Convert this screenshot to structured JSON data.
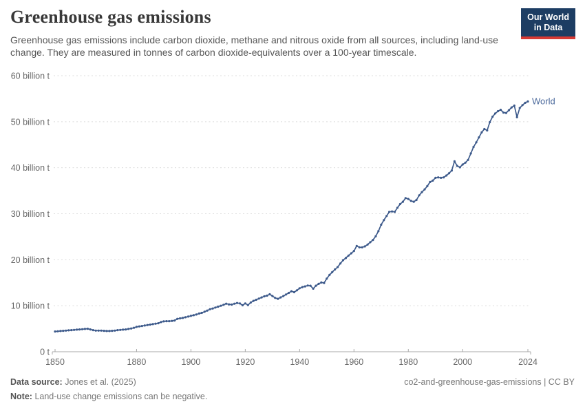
{
  "header": {
    "title": "Greenhouse gas emissions",
    "subtitle": "Greenhouse gas emissions include carbon dioxide, methane and nitrous oxide from all sources, including land-use change. They are measured in tonnes of carbon dioxide-equivalents over a 100-year timescale."
  },
  "logo": {
    "line1": "Our World",
    "line2": "in Data",
    "bg_color": "#1d3d63",
    "accent_color": "#d73a34"
  },
  "chart_data": {
    "type": "line",
    "title": "Greenhouse gas emissions",
    "ylabel": "",
    "xlabel": "",
    "unit": "tonnes of carbon dioxide-equivalents",
    "year_start": 1850,
    "year_end": 2024,
    "ylim": [
      0,
      60
    ],
    "grid": "horizontal-dashed",
    "legend_position": "end-of-line",
    "xticks": [
      1850,
      1880,
      1900,
      1920,
      1940,
      1960,
      1980,
      2000,
      2024
    ],
    "yticks": [
      {
        "value": 0,
        "label": "0 t"
      },
      {
        "value": 10,
        "label": "10 billion t"
      },
      {
        "value": 20,
        "label": "20 billion t"
      },
      {
        "value": 30,
        "label": "30 billion t"
      },
      {
        "value": 40,
        "label": "40 billion t"
      },
      {
        "value": 50,
        "label": "50 billion t"
      },
      {
        "value": 60,
        "label": "60 billion t"
      }
    ],
    "series": [
      {
        "name": "World",
        "color": "#3d5a8b",
        "label_color": "#4c6a9c",
        "values": [
          4.4,
          4.45,
          4.5,
          4.55,
          4.6,
          4.65,
          4.7,
          4.75,
          4.8,
          4.85,
          4.9,
          4.95,
          5.0,
          4.85,
          4.7,
          4.6,
          4.6,
          4.6,
          4.55,
          4.5,
          4.5,
          4.55,
          4.6,
          4.7,
          4.75,
          4.8,
          4.85,
          4.95,
          5.05,
          5.2,
          5.4,
          5.5,
          5.6,
          5.7,
          5.8,
          5.9,
          6.0,
          6.1,
          6.2,
          6.45,
          6.6,
          6.65,
          6.65,
          6.7,
          6.8,
          7.15,
          7.25,
          7.35,
          7.5,
          7.65,
          7.8,
          7.95,
          8.1,
          8.3,
          8.45,
          8.7,
          8.95,
          9.25,
          9.4,
          9.6,
          9.8,
          10.0,
          10.2,
          10.45,
          10.3,
          10.25,
          10.45,
          10.6,
          10.5,
          10.1,
          10.5,
          10.15,
          10.7,
          11.05,
          11.3,
          11.55,
          11.8,
          12.05,
          12.2,
          12.5,
          12.1,
          11.7,
          11.5,
          11.8,
          12.1,
          12.45,
          12.8,
          13.15,
          12.95,
          13.35,
          13.8,
          14.05,
          14.2,
          14.4,
          14.35,
          13.7,
          14.35,
          14.75,
          15.05,
          14.95,
          15.9,
          16.7,
          17.3,
          17.9,
          18.4,
          19.2,
          19.9,
          20.4,
          20.9,
          21.4,
          21.9,
          23.0,
          22.7,
          22.7,
          22.9,
          23.3,
          23.8,
          24.3,
          25.1,
          26.2,
          27.6,
          28.6,
          29.5,
          30.4,
          30.5,
          30.4,
          31.3,
          32.1,
          32.6,
          33.4,
          33.2,
          32.8,
          32.6,
          33.0,
          34.0,
          34.7,
          35.3,
          36.0,
          36.9,
          37.2,
          37.8,
          37.9,
          37.8,
          37.9,
          38.3,
          38.8,
          39.4,
          41.4,
          40.4,
          40.1,
          40.7,
          41.1,
          41.7,
          43.1,
          44.5,
          45.5,
          46.6,
          47.7,
          48.4,
          48.1,
          49.9,
          51.1,
          51.8,
          52.3,
          52.6,
          52.0,
          51.9,
          52.5,
          53.1,
          53.5,
          51.0,
          53.0,
          53.6,
          54.1,
          54.4
        ]
      }
    ]
  },
  "colors": {
    "line": "#3d5a8b",
    "series_label": "#4c6a9c",
    "axis_text": "#666666",
    "grid": "#dcdcdc",
    "axis_line": "#a8a8a8",
    "title": "#383838",
    "subtitle": "#555555"
  },
  "footer": {
    "datasource_label": "Data source:",
    "datasource_value": "Jones et al. (2025)",
    "attribution": "co2-and-greenhouse-gas-emissions | CC BY",
    "note_label": "Note:",
    "note_value": "Land-use change emissions can be negative."
  }
}
